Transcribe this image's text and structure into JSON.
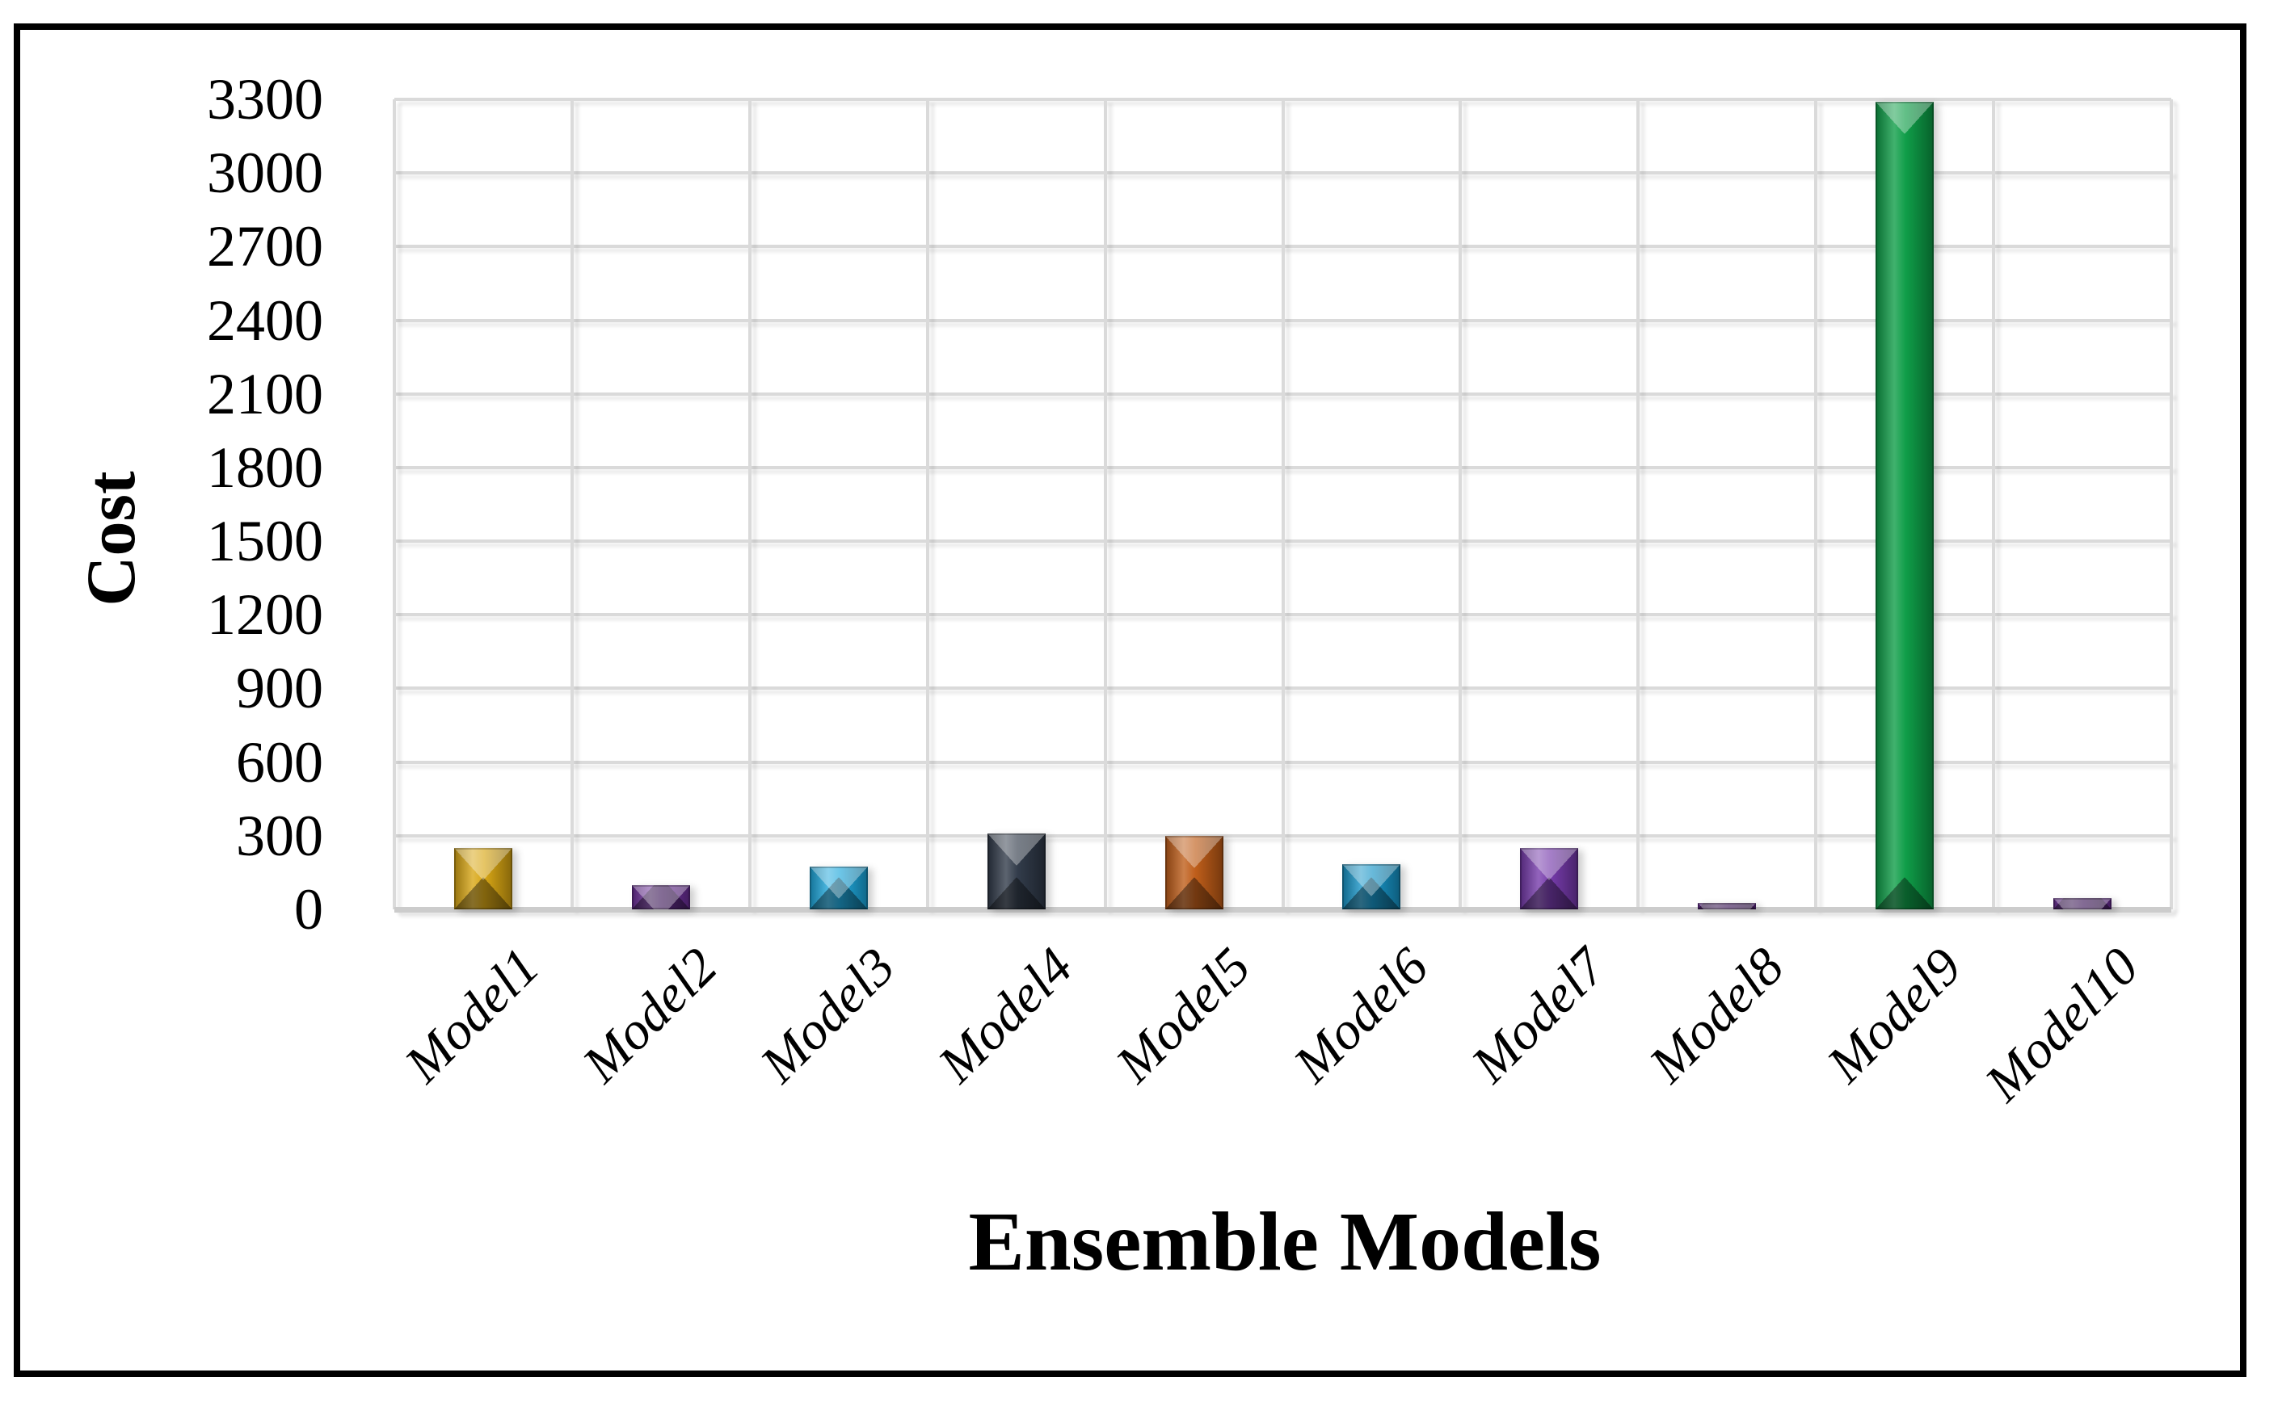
{
  "chart_data": {
    "type": "bar",
    "title": "",
    "xlabel": "Ensemble Models",
    "ylabel": "Cost",
    "categories": [
      "Model1",
      "Model2",
      "Model3",
      "Model4",
      "Model5",
      "Model6",
      "Model7",
      "Model8",
      "Model9",
      "Model10"
    ],
    "values": [
      250,
      100,
      175,
      310,
      300,
      185,
      250,
      25,
      3290,
      45
    ],
    "bar_colors": [
      "#D8A511",
      "#6C2E99",
      "#1CA6DB",
      "#2E3847",
      "#BE5B16",
      "#1593C6",
      "#7438AA",
      "#6C2E99",
      "#0B9C45",
      "#6C2E99"
    ],
    "ylim": [
      0,
      3300
    ],
    "ytick_step": 300,
    "yticks": [
      0,
      300,
      600,
      900,
      1200,
      1500,
      1800,
      2100,
      2400,
      2700,
      3000,
      3300
    ],
    "grid": true,
    "gridline_color": "#dadada",
    "border_color": "#000000",
    "legend": "none",
    "x_label_rotation_deg": 45
  }
}
